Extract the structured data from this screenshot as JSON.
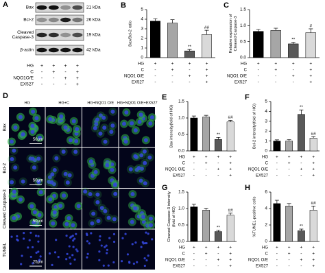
{
  "panel_a": {
    "letter": "A",
    "rows": [
      {
        "label": [
          "Bax"
        ],
        "kda": "21 kDa"
      },
      {
        "label": [
          "Bcl-2"
        ],
        "kda": "26 kDa"
      },
      {
        "label": [
          "Cleaved",
          "Caspase-3"
        ],
        "kda": "19 kDa"
      },
      {
        "label": [
          "β-actin"
        ],
        "kda": "42 kDa"
      }
    ],
    "conditions": [
      {
        "label": "HG",
        "signs": [
          "+",
          "+",
          "+",
          "+"
        ]
      },
      {
        "label": "C",
        "signs": [
          "-",
          "+",
          "-",
          "+"
        ]
      },
      {
        "label": "NQO1O/E",
        "signs": [
          "-",
          "-",
          "+",
          "+"
        ]
      },
      {
        "label": "EX527",
        "signs": [
          "-",
          "-",
          "-",
          "+"
        ]
      }
    ]
  },
  "panel_d": {
    "letter": "D",
    "columns": [
      "HG",
      "HG+C",
      "HG+NQO1 O/E",
      "HG+NQO1 O/E+EX527"
    ],
    "rows": [
      {
        "label": "Bax",
        "scale": "50μm"
      },
      {
        "label": "Bcl-2",
        "scale": "50μm"
      },
      {
        "label": "Cleaved Caspase-3",
        "scale": "50μm"
      },
      {
        "label": "TUNEL",
        "scale": "25μm"
      }
    ]
  },
  "conditions": [
    {
      "label": "HG",
      "signs": [
        "+",
        "+",
        "+",
        "+"
      ]
    },
    {
      "label": "C",
      "signs": [
        "-",
        "+",
        "-",
        "+"
      ]
    },
    {
      "label": "NQO1 O/E",
      "signs": [
        "-",
        "-",
        "+",
        "+"
      ]
    },
    {
      "label": "EX527",
      "signs": [
        "-",
        "-",
        "-",
        "+"
      ]
    }
  ],
  "chart_data": [
    {
      "type": "bar",
      "panel": "B",
      "ylabel": [
        "Bax/Bcl-2 ratio"
      ],
      "values": [
        3.8,
        3.6,
        0.7,
        2.4
      ],
      "errors": [
        0.25,
        0.35,
        0.15,
        0.45
      ],
      "colors": [
        "#000000",
        "#a6a6a6",
        "#595959",
        "#d9d9d9"
      ],
      "annotations": [
        null,
        null,
        "**",
        "##"
      ],
      "ylim": [
        0,
        5
      ],
      "yticks": [
        0,
        1,
        2,
        3,
        4,
        5
      ]
    },
    {
      "type": "bar",
      "panel": "C",
      "ylabel": [
        "Relative expression of",
        "Cleaved Caspase-3"
      ],
      "values": [
        0.82,
        0.85,
        0.43,
        0.78
      ],
      "errors": [
        0.06,
        0.07,
        0.05,
        0.12
      ],
      "colors": [
        "#000000",
        "#a6a6a6",
        "#595959",
        "#d9d9d9"
      ],
      "annotations": [
        null,
        null,
        "**",
        "#"
      ],
      "ylim": [
        0,
        1.5
      ],
      "yticks": [
        {
          "value": 0,
          "label": "0.0"
        },
        0.5,
        {
          "value": 1,
          "label": "1.0"
        },
        1.5
      ]
    },
    {
      "type": "bar",
      "panel": "E",
      "ylabel": [
        "Bax intensity(fold of HG)"
      ],
      "values": [
        1.0,
        1.03,
        0.35,
        0.88
      ],
      "errors": [
        0.06,
        0.05,
        0.06,
        0.05
      ],
      "colors": [
        "#000000",
        "#a6a6a6",
        "#595959",
        "#d9d9d9"
      ],
      "annotations": [
        null,
        null,
        "**",
        "##"
      ],
      "ylim": [
        0,
        1.5
      ],
      "yticks": [
        {
          "value": 0,
          "label": "0.0"
        },
        0.5,
        {
          "value": 1,
          "label": "1.0"
        },
        1.5
      ]
    },
    {
      "type": "bar",
      "panel": "F",
      "ylabel": [
        "Bcl-2 intensity(fold of HG)"
      ],
      "values": [
        1.0,
        1.0,
        3.7,
        1.3
      ],
      "errors": [
        0.12,
        0.15,
        0.45,
        0.15
      ],
      "colors": [
        "#000000",
        "#a6a6a6",
        "#595959",
        "#d9d9d9"
      ],
      "annotations": [
        null,
        null,
        "**",
        "##"
      ],
      "ylim": [
        0,
        5
      ],
      "yticks": [
        0,
        1,
        2,
        3,
        4,
        5
      ]
    },
    {
      "type": "bar",
      "panel": "G",
      "ylabel": [
        "Cleaved Caspase-3 intensity",
        "(fold of HG)"
      ],
      "values": [
        1.05,
        0.95,
        0.3,
        0.8
      ],
      "errors": [
        0.08,
        0.06,
        0.04,
        0.06
      ],
      "colors": [
        "#000000",
        "#a6a6a6",
        "#595959",
        "#d9d9d9"
      ],
      "annotations": [
        null,
        null,
        "**",
        "##"
      ],
      "ylim": [
        0,
        1.5
      ],
      "yticks": [
        {
          "value": 0,
          "label": "0.0"
        },
        0.5,
        {
          "value": 1,
          "label": "1.0"
        },
        1.5
      ]
    },
    {
      "type": "bar",
      "panel": "H",
      "ylabel": [
        "%TUNEL-positive cells"
      ],
      "values": [
        4.6,
        4.3,
        1.3,
        3.8
      ],
      "errors": [
        0.4,
        0.3,
        0.2,
        0.5
      ],
      "colors": [
        "#000000",
        "#a6a6a6",
        "#595959",
        "#d9d9d9"
      ],
      "annotations": [
        null,
        null,
        "**",
        "##"
      ],
      "ylim": [
        0,
        6
      ],
      "yticks": [
        0,
        2,
        4,
        6
      ]
    }
  ]
}
